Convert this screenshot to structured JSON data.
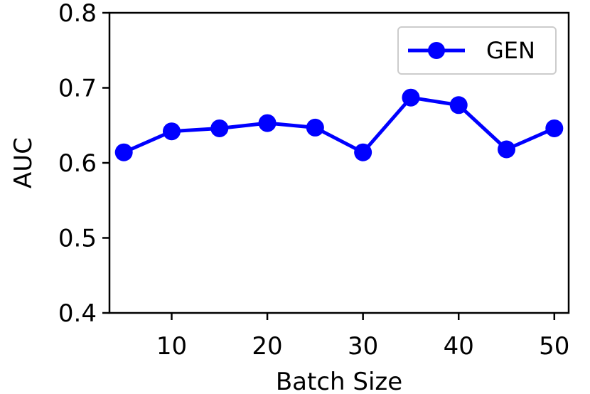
{
  "chart_data": {
    "type": "line",
    "title": "",
    "xlabel": "Batch Size",
    "ylabel": "AUC",
    "x": [
      5,
      10,
      15,
      20,
      25,
      30,
      35,
      40,
      45,
      50
    ],
    "xlim": [
      3.5,
      51.5
    ],
    "ylim": [
      0.4,
      0.8
    ],
    "xticks": [
      10,
      20,
      30,
      40,
      50
    ],
    "yticks": [
      0.4,
      0.5,
      0.6,
      0.7,
      0.8
    ],
    "xtick_labels": [
      "10",
      "20",
      "30",
      "40",
      "50"
    ],
    "ytick_labels": [
      "0.4",
      "0.5",
      "0.6",
      "0.7",
      "0.8"
    ],
    "grid": false,
    "legend": {
      "position": "top-right"
    },
    "series": [
      {
        "name": "GEN",
        "color": "#0000ff",
        "marker": "circle",
        "values": [
          0.614,
          0.642,
          0.646,
          0.653,
          0.647,
          0.614,
          0.687,
          0.677,
          0.618,
          0.646
        ]
      }
    ]
  }
}
